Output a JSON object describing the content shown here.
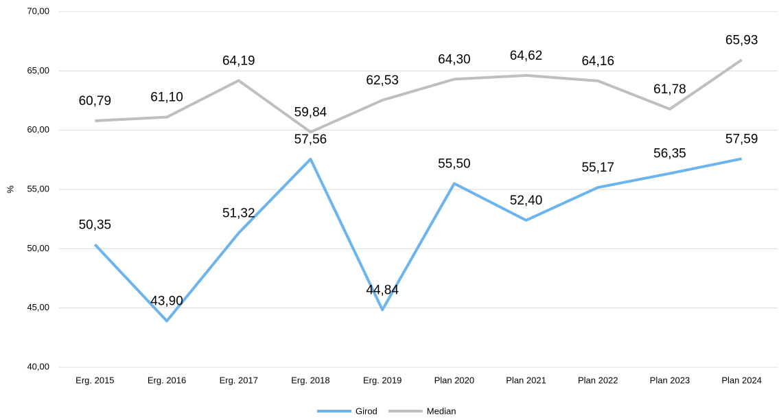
{
  "chart_data": {
    "type": "line",
    "y_label": "%",
    "categories": [
      "Erg. 2015",
      "Erg. 2016",
      "Erg. 2017",
      "Erg. 2018",
      "Erg. 2019",
      "Plan 2020",
      "Plan 2021",
      "Plan 2022",
      "Plan 2023",
      "Plan 2024"
    ],
    "series": [
      {
        "name": "Girod",
        "color": "#6cb4ee",
        "values": [
          50.35,
          43.9,
          51.32,
          57.56,
          44.84,
          55.5,
          52.4,
          55.17,
          56.35,
          57.59
        ],
        "value_labels": [
          "50,35",
          "43,90",
          "51,32",
          "57,56",
          "44,84",
          "55,50",
          "52,40",
          "55,17",
          "56,35",
          "57,59"
        ]
      },
      {
        "name": "Median",
        "color": "#bfbfbf",
        "values": [
          60.79,
          61.1,
          64.19,
          59.84,
          62.53,
          64.3,
          64.62,
          64.16,
          61.78,
          65.93
        ],
        "value_labels": [
          "60,79",
          "61,10",
          "64,19",
          "59,84",
          "62,53",
          "64,30",
          "64,62",
          "64,16",
          "61,78",
          "65,93"
        ]
      }
    ],
    "ylim": [
      40,
      70
    ],
    "yticks": [
      {
        "value": 40,
        "label": "40,00"
      },
      {
        "value": 45,
        "label": "45,00"
      },
      {
        "value": 50,
        "label": "50,00"
      },
      {
        "value": 55,
        "label": "55,00"
      },
      {
        "value": 60,
        "label": "60,00"
      },
      {
        "value": 65,
        "label": "65,00"
      },
      {
        "value": 70,
        "label": "70,00"
      }
    ],
    "grid": true,
    "legend": "bottom"
  }
}
